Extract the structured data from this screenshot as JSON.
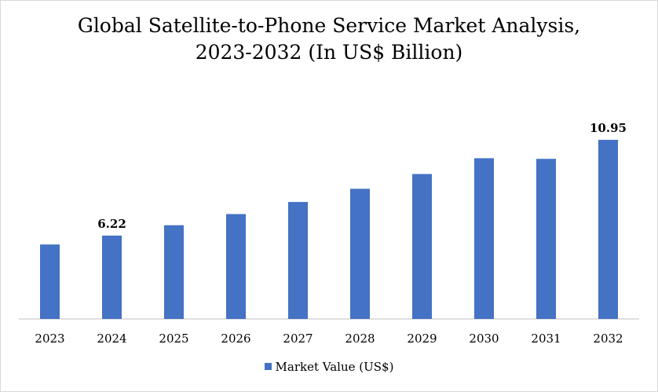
{
  "chart_data": {
    "type": "bar",
    "title": [
      "Global Satellite-to-Phone Service Market Analysis,",
      "2023-2032 (In US$ Billion)"
    ],
    "xlabel": "",
    "ylabel": "",
    "categories": [
      "2023",
      "2024",
      "2025",
      "2026",
      "2027",
      "2028",
      "2029",
      "2030",
      "2031",
      "2032"
    ],
    "series": [
      {
        "name": "Market Value (US$)",
        "color": "#4472c4",
        "values": [
          5.78,
          6.22,
          6.73,
          7.28,
          7.88,
          8.53,
          9.26,
          10.04,
          10.01,
          10.95
        ]
      }
    ],
    "data_labels": {
      "1": "6.22",
      "9": "10.95"
    },
    "ylim": [
      2.1,
      10.95
    ],
    "grid": false,
    "legend": "bottom"
  }
}
